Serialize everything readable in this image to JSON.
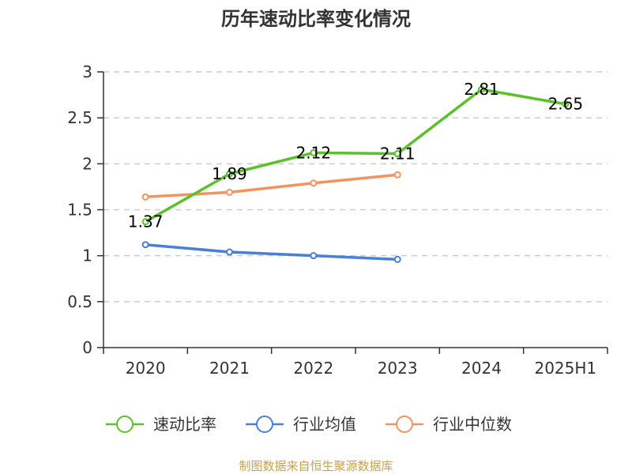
{
  "chart_data": {
    "type": "line",
    "title": "历年速动比率变化情况",
    "categories": [
      "2020",
      "2021",
      "2022",
      "2023",
      "2024",
      "2025H1"
    ],
    "ylim": [
      0,
      3
    ],
    "yticks": [
      "0",
      "0.5",
      "1",
      "1.5",
      "2",
      "2.5",
      "3"
    ],
    "grid": true,
    "legend_position": "bottom",
    "series": [
      {
        "name": "速动比率",
        "color": "#5ac12b",
        "values": [
          1.37,
          1.89,
          2.12,
          2.11,
          2.81,
          2.65
        ],
        "labels": [
          "1.37",
          "1.89",
          "2.12",
          "2.11",
          "2.81",
          "2.65"
        ]
      },
      {
        "name": "行业均值",
        "color": "#4a7fd6",
        "values": [
          1.12,
          1.04,
          1.0,
          0.96,
          null,
          null
        ]
      },
      {
        "name": "行业中位数",
        "color": "#f5935e",
        "values": [
          1.64,
          1.69,
          1.79,
          1.88,
          null,
          null
        ]
      }
    ]
  },
  "source_text": "制图数据来自恒生聚源数据库"
}
